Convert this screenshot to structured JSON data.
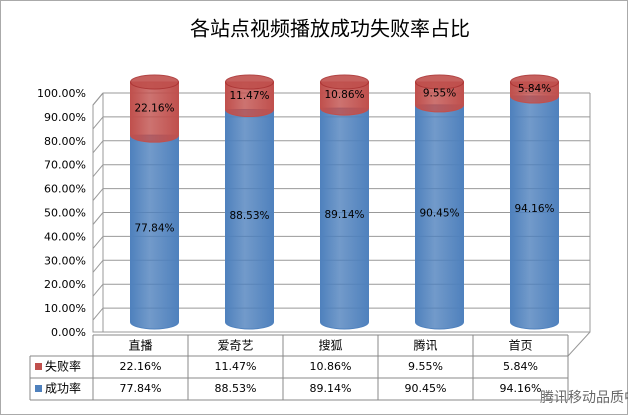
{
  "chart_data": {
    "type": "stacked_bar_3d",
    "title": "各站点视频播放成功失败率占比",
    "categories": [
      "直播",
      "爱奇艺",
      "搜狐",
      "腾讯",
      "首页"
    ],
    "series": [
      {
        "name": "成功率",
        "color": "#4f81bd",
        "values": [
          77.84,
          88.53,
          89.14,
          90.45,
          94.16
        ],
        "value_labels": [
          "77.84%",
          "88.53%",
          "89.14%",
          "90.45%",
          "94.16%"
        ]
      },
      {
        "name": "失败率",
        "color": "#c0504d",
        "values": [
          22.16,
          11.47,
          10.86,
          9.55,
          5.84
        ],
        "value_labels": [
          "22.16%",
          "11.47%",
          "10.86%",
          "9.55%",
          "5.84%"
        ]
      }
    ],
    "ylim": [
      0,
      100
    ],
    "yticks": [
      {
        "value": 0,
        "label": "0.00%"
      },
      {
        "value": 10,
        "label": "10.00%"
      },
      {
        "value": 20,
        "label": "20.00%"
      },
      {
        "value": 30,
        "label": "30.00%"
      },
      {
        "value": 40,
        "label": "40.00%"
      },
      {
        "value": 50,
        "label": "50.00%"
      },
      {
        "value": 60,
        "label": "60.00%"
      },
      {
        "value": 70,
        "label": "70.00%"
      },
      {
        "value": 80,
        "label": "80.00%"
      },
      {
        "value": 90,
        "label": "90.00%"
      },
      {
        "value": 100,
        "label": "100.00%"
      }
    ],
    "grid": true,
    "watermark": "腾讯移动品质中心TMQ"
  }
}
